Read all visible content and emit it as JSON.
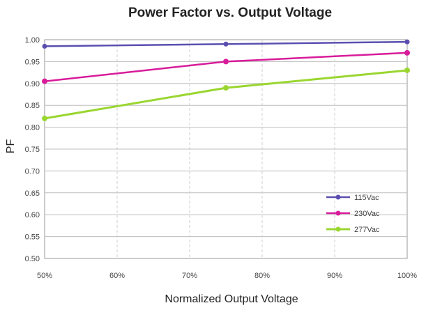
{
  "chart_data": {
    "type": "line",
    "title": "Power Factor vs. Output Voltage",
    "xlabel": "Normalized Output Voltage",
    "ylabel": "PF",
    "x_ticks": [
      "50%",
      "60%",
      "70%",
      "80%",
      "90%",
      "100%"
    ],
    "x_range": [
      50,
      100
    ],
    "y_ticks": [
      "0.50",
      "0.55",
      "0.60",
      "0.65",
      "0.70",
      "0.75",
      "0.80",
      "0.85",
      "0.90",
      "0.95",
      "1.00"
    ],
    "ylim": [
      0.5,
      1.0
    ],
    "grid": true,
    "legend_position": "bottom-right",
    "series": [
      {
        "name": "115Vac",
        "color": "#5a4fb0",
        "x": [
          50,
          75,
          100
        ],
        "y": [
          0.985,
          0.99,
          0.995
        ]
      },
      {
        "name": "230Vac",
        "color": "#d81b9a",
        "x": [
          50,
          75,
          100
        ],
        "y": [
          0.905,
          0.95,
          0.97
        ]
      },
      {
        "name": "277Vac",
        "color": "#9ad630",
        "x": [
          50,
          75,
          100
        ],
        "y": [
          0.82,
          0.89,
          0.93
        ]
      }
    ]
  }
}
